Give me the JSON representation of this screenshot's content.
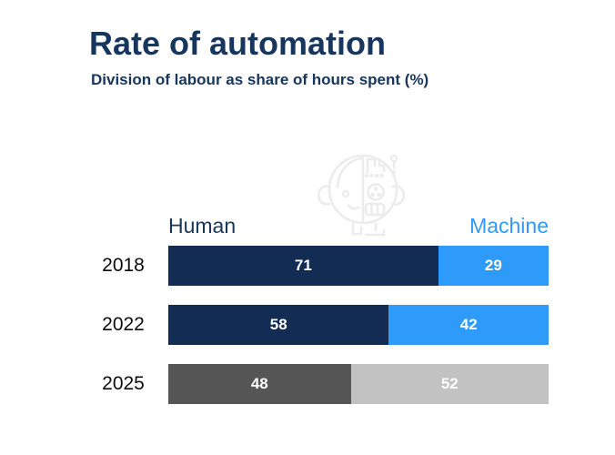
{
  "header": {
    "title": "Rate of automation",
    "subtitle": "Division of labour as share of hours spent (%)",
    "title_color": "#17365d"
  },
  "watermark": {
    "icon": "half-human-half-robot-head-icon",
    "color": "#ececec"
  },
  "chart_data": {
    "type": "bar",
    "orientation": "horizontal",
    "stacked": true,
    "title": "Rate of automation",
    "subtitle": "Division of labour as share of hours spent (%)",
    "categories": [
      "2018",
      "2022",
      "2025"
    ],
    "series": [
      {
        "name": "Human",
        "values": [
          71,
          58,
          48
        ]
      },
      {
        "name": "Machine",
        "values": [
          29,
          42,
          52
        ]
      }
    ],
    "xlim": [
      0,
      100
    ],
    "grid": false,
    "legend": {
      "position": "top",
      "human_label": "Human",
      "machine_label": "Machine",
      "human_color": "#17365d",
      "machine_color": "#2e9bfa"
    },
    "colors": {
      "human_actual": "#122c54",
      "machine_actual": "#2e9bfa",
      "human_projected": "#565656",
      "machine_projected": "#c2c2c2"
    },
    "value_label_color": "#ffffff",
    "note": "2025 row shown in grey (projection)"
  },
  "rows": [
    {
      "year": "2018",
      "human": "71",
      "machine": "29",
      "human_pct": 71,
      "machine_pct": 29,
      "projected": false
    },
    {
      "year": "2022",
      "human": "58",
      "machine": "42",
      "human_pct": 58,
      "machine_pct": 42,
      "projected": false
    },
    {
      "year": "2025",
      "human": "48",
      "machine": "52",
      "human_pct": 48,
      "machine_pct": 52,
      "projected": true
    }
  ]
}
